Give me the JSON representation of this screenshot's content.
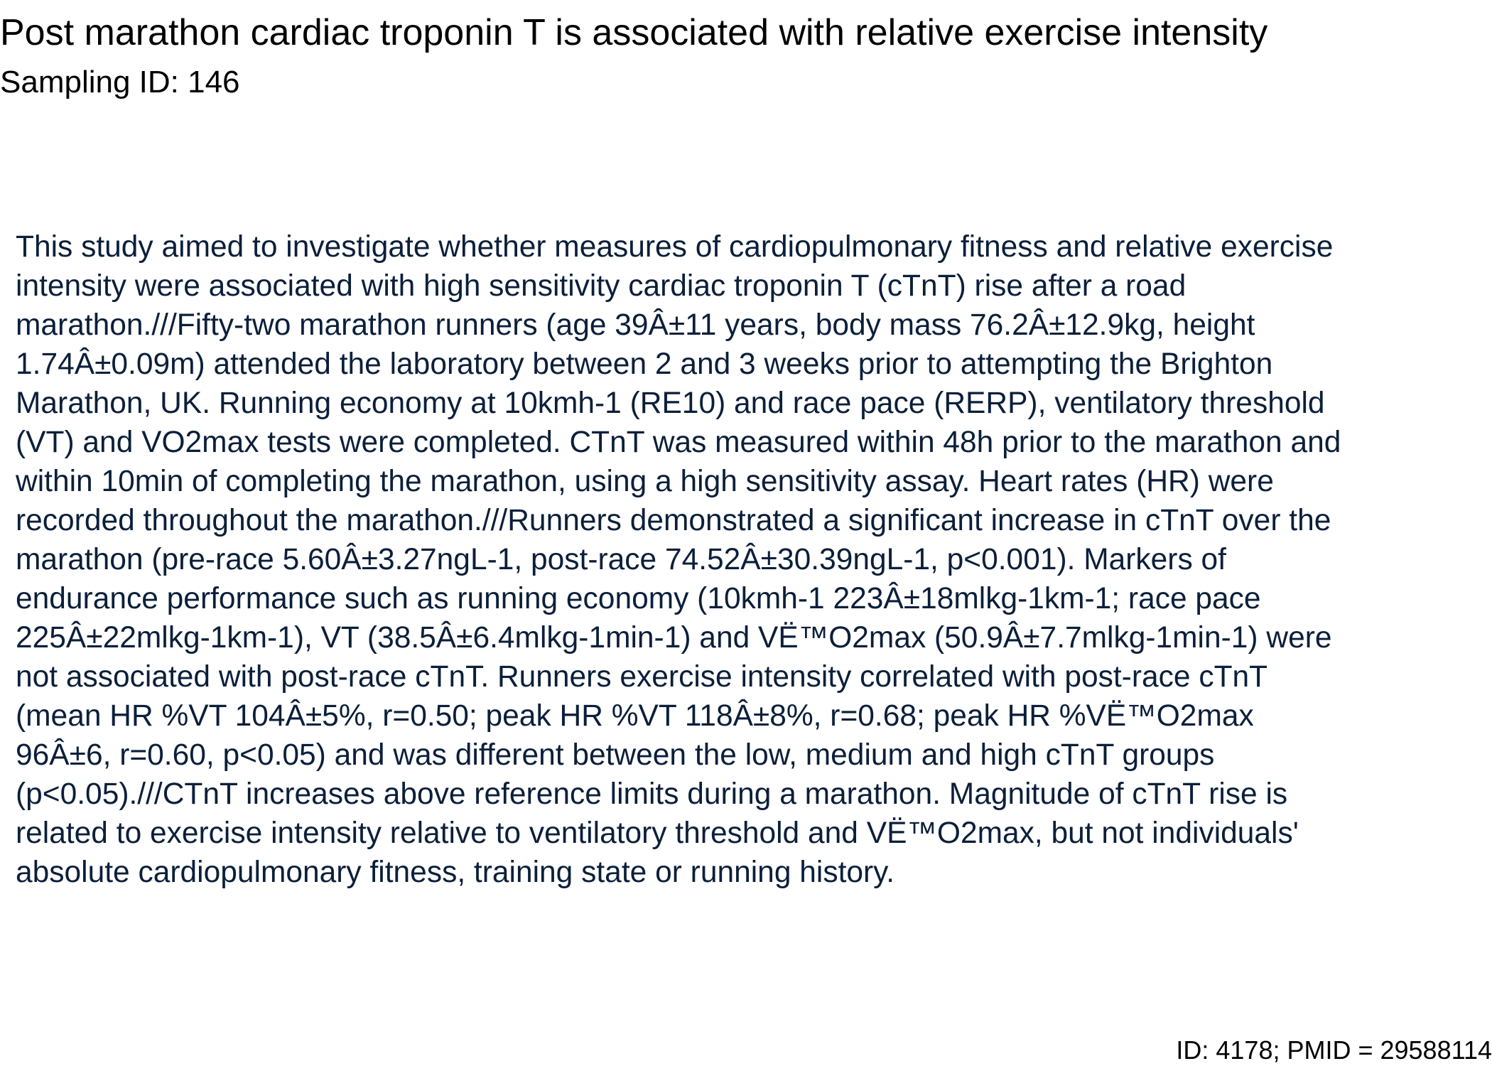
{
  "document": {
    "title": "Post marathon cardiac troponin T is associated with relative exercise intensity",
    "subtitle": "Sampling ID: 146",
    "abstract_lines": [
      "This study aimed to investigate whether measures of cardiopulmonary fitness and relative exercise",
      "intensity were associated with high sensitivity cardiac troponin T (cTnT) rise after a road",
      "marathon.///Fifty-two marathon runners (age 39Â±11 years, body mass 76.2Â±12.9kg, height",
      "1.74Â±0.09m) attended the laboratory between 2 and 3 weeks prior to attempting the Brighton",
      "Marathon, UK. Running economy at 10kmh-1 (RE10) and race pace (RERP), ventilatory threshold",
      "(VT) and VO2max tests were completed. CTnT was measured within 48h prior to the marathon and",
      "within 10min of completing the marathon, using a high sensitivity assay. Heart rates (HR) were",
      "recorded throughout the marathon.///Runners demonstrated a significant increase in cTnT over the",
      "marathon (pre-race 5.60Â±3.27ngL-1, post-race 74.52Â±30.39ngL-1, p<0.001). Markers of",
      "endurance performance such as running economy (10kmh-1 223Â±18mlkg-1km-1; race pace",
      "225Â±22mlkg-1km-1), VT (38.5Â±6.4mlkg-1min-1) and VË™O2max (50.9Â±7.7mlkg-1min-1) were",
      "not associated with post-race cTnT. Runners exercise intensity correlated with post-race cTnT",
      "(mean HR %VT 104Â±5%, r=0.50; peak HR %VT 118Â±8%, r=0.68; peak HR %VË™O2max",
      "96Â±6, r=0.60, p<0.05) and was different between the low, medium and high cTnT groups",
      "(p<0.05).///CTnT increases above reference limits during a marathon. Magnitude of cTnT rise is",
      "related to exercise intensity relative to ventilatory threshold and VË™O2max, but not individuals'",
      "absolute cardiopulmonary fitness, training state or running history."
    ],
    "footer": "ID: 4178; PMID = 29588114"
  }
}
